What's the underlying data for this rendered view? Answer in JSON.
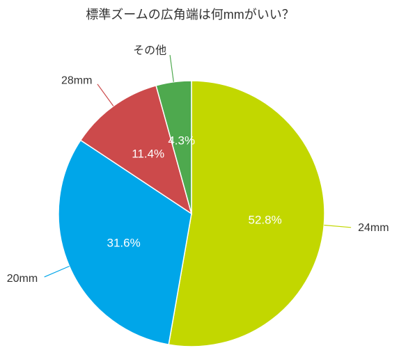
{
  "chart_data": {
    "type": "pie",
    "title": "標準ズームの広角端は何mmがいい？",
    "slices": [
      {
        "label": "24mm",
        "value": 52.8,
        "value_label": "52.8%",
        "color": "#c2d700"
      },
      {
        "label": "20mm",
        "value": 31.6,
        "value_label": "31.6%",
        "color": "#00a6e9"
      },
      {
        "label": "28mm",
        "value": 11.4,
        "value_label": "11.4%",
        "color": "#cc4a4b"
      },
      {
        "label": "その他",
        "value": 4.3,
        "value_label": "4.3%",
        "color": "#4ea94e"
      }
    ]
  }
}
